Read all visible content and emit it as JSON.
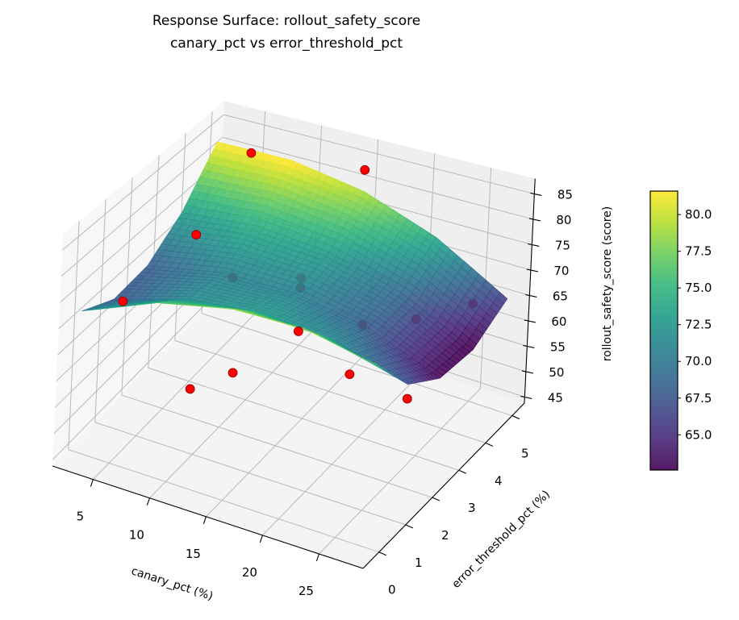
{
  "chart_data": {
    "type": "surface3d",
    "title": [
      "Response Surface: rollout_safety_score",
      "canary_pct vs error_threshold_pct"
    ],
    "xlabel": "canary_pct (%)",
    "ylabel": "error_threshold_pct (%)",
    "zlabel": "rollout_safety_score (score)",
    "xlim": [
      1.4,
      28.9
    ],
    "ylim": [
      -0.6,
      5.46
    ],
    "zlim": [
      43.8,
      88
    ],
    "xticks": [
      "5",
      "10",
      "15",
      "20",
      "25"
    ],
    "yticks": [
      "0",
      "1",
      "2",
      "3",
      "4",
      "5"
    ],
    "zticks": [
      "45",
      "50",
      "55",
      "60",
      "65",
      "70",
      "75",
      "80",
      "85"
    ],
    "grid": true,
    "colormap": "viridis",
    "surface": {
      "x": [
        2,
        8.5,
        15,
        21.5,
        28
      ],
      "y": [
        0,
        1.25,
        2.5,
        3.75,
        5
      ],
      "z": [
        [
          71.0,
          76.4,
          79.0,
          78.9,
          76.0
        ],
        [
          67.4,
          71.5,
          72.8,
          71.4,
          67.2
        ],
        [
          68.0,
          70.8,
          70.8,
          68.1,
          62.7
        ],
        [
          72.8,
          74.3,
          73.0,
          69.0,
          62.2
        ],
        [
          81.7,
          81.9,
          79.4,
          74.1,
          66.0
        ]
      ]
    },
    "points": [
      {
        "x": 5,
        "y": 5,
        "z": 81.2
      },
      {
        "x": 15,
        "y": 5,
        "z": 83.8
      },
      {
        "x": 25,
        "y": 5,
        "z": 63.1
      },
      {
        "x": 5,
        "y": 3,
        "z": 73.8
      },
      {
        "x": 15,
        "y": 2.7,
        "z": 72.8
      },
      {
        "x": 15,
        "y": 2.7,
        "z": 70.9
      },
      {
        "x": 15,
        "y": 2.7,
        "z": 62.4
      },
      {
        "x": 25,
        "y": 2.8,
        "z": 70.5
      },
      {
        "x": 5,
        "y": 0.25,
        "z": 73.5
      },
      {
        "x": 9.5,
        "y": 2.5,
        "z": 70.4
      },
      {
        "x": 21,
        "y": 2.5,
        "z": 68.4
      },
      {
        "x": 15,
        "y": 0.2,
        "z": 66.3
      },
      {
        "x": 25,
        "y": 0.3,
        "z": 71.4
      },
      {
        "x": 10,
        "y": 0.8,
        "z": 57.3
      },
      {
        "x": 25,
        "y": 2.6,
        "z": 56.5
      }
    ],
    "point_color": "#ff0000",
    "colorbar": {
      "limits": [
        62.6,
        81.6
      ],
      "ticks": [
        "65.0",
        "67.5",
        "70.0",
        "72.5",
        "75.0",
        "77.5",
        "80.0"
      ]
    }
  }
}
